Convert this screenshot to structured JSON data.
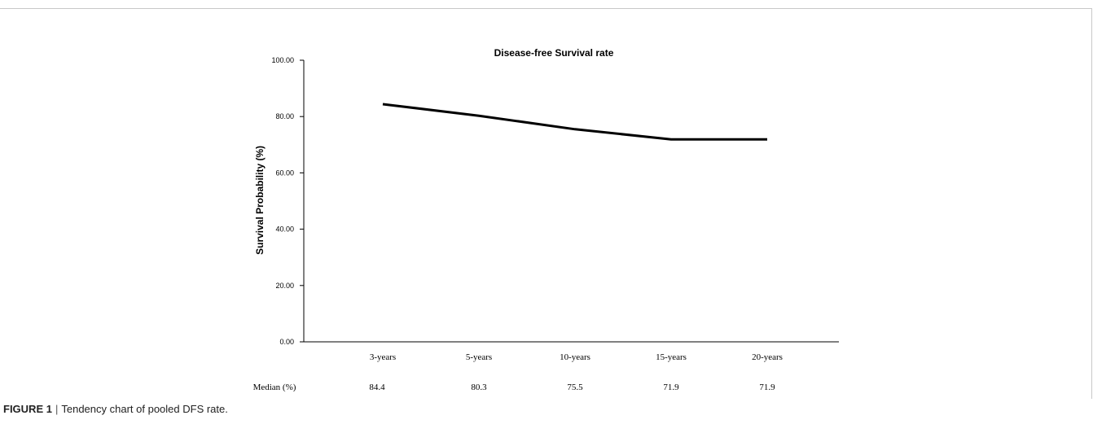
{
  "figure": {
    "caption_label": "FIGURE 1",
    "caption_separator": "|",
    "caption_text": "Tendency chart of pooled DFS rate."
  },
  "median_row": {
    "label": "Median (%)",
    "values": [
      "84.4",
      "80.3",
      "75.5",
      "71.9",
      "71.9"
    ]
  },
  "chart_data": {
    "type": "line",
    "title": "Disease-free Survival rate",
    "xlabel": "",
    "ylabel": "Survival Probability (%)",
    "categories": [
      "3-years",
      "5-years",
      "10-years",
      "15-years",
      "20-years"
    ],
    "series": [
      {
        "values": [
          84.4,
          80.3,
          75.5,
          71.9,
          71.9
        ]
      }
    ],
    "ylim": [
      0,
      100
    ],
    "yticks": [
      "0.00",
      "20.00",
      "40.00",
      "60.00",
      "80.00",
      "100.00"
    ],
    "grid": false,
    "line_color": "#000000"
  }
}
